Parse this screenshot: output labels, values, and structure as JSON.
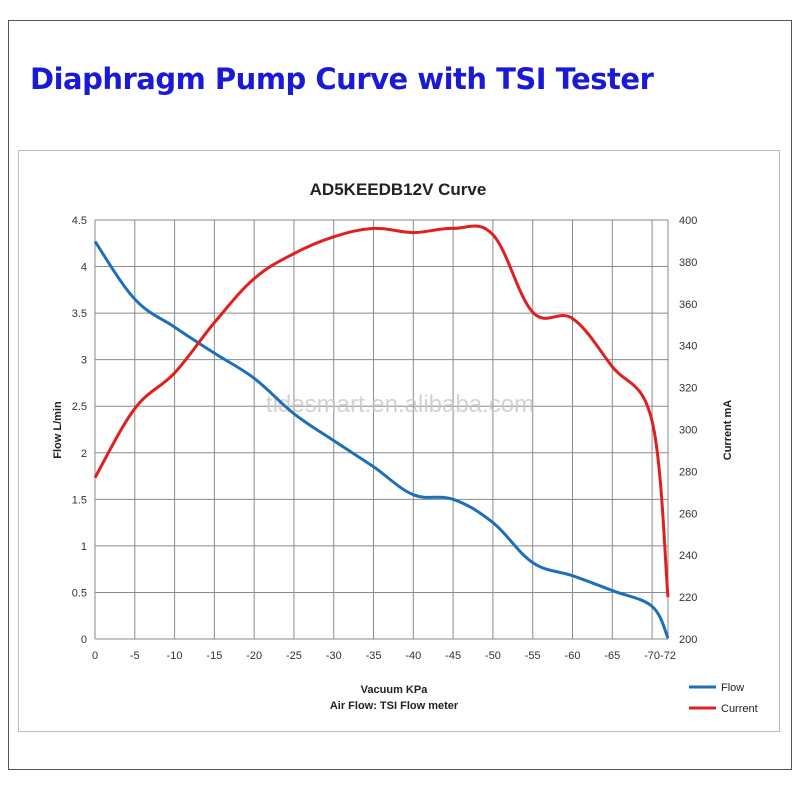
{
  "page_title": "Diaphragm Pump Curve with TSI Tester",
  "watermark": "tidesmart.en.alibaba.com",
  "colors": {
    "title": "#1a1ad6",
    "flow": "#1f6fb8",
    "current": "#e02020",
    "grid": "#8a8a8a"
  },
  "chart_data": {
    "type": "line",
    "title": "AD5KEEDB12V  Curve",
    "xlabel": "Vacuum  KPa",
    "xlabel2": "Air Flow: TSI Flow meter",
    "ylabel": "Flow  L/min",
    "y2label": "Current mA",
    "categories": [
      "0",
      "-5",
      "-10",
      "-15",
      "-20",
      "-25",
      "-30",
      "-35",
      "-40",
      "-45",
      "-50",
      "-55",
      "-60",
      "-65",
      "-70",
      "-72"
    ],
    "x": [
      0,
      -5,
      -10,
      -15,
      -20,
      -25,
      -30,
      -35,
      -40,
      -45,
      -50,
      -55,
      -60,
      -65,
      -70,
      -72
    ],
    "yticks": [
      "0",
      "0.5",
      "1",
      "1.5",
      "2",
      "2.5",
      "3",
      "3.5",
      "4",
      "4.5"
    ],
    "y2ticks": [
      "200",
      "220",
      "240",
      "260",
      "280",
      "300",
      "320",
      "340",
      "360",
      "380",
      "400"
    ],
    "ylim": [
      0,
      4.5
    ],
    "y2lim": [
      200,
      400
    ],
    "grid": true,
    "legend_position": "bottom-right",
    "series": [
      {
        "name": "Flow",
        "axis": "left",
        "values": [
          4.27,
          3.65,
          3.35,
          3.07,
          2.8,
          2.42,
          2.13,
          1.85,
          1.55,
          1.5,
          1.25,
          0.82,
          0.68,
          0.52,
          0.35,
          0.01
        ]
      },
      {
        "name": "Current",
        "axis": "right",
        "values": [
          277,
          310,
          327,
          351,
          372,
          384,
          392,
          396,
          394,
          396,
          393,
          356,
          353,
          330,
          304,
          220
        ]
      }
    ]
  }
}
